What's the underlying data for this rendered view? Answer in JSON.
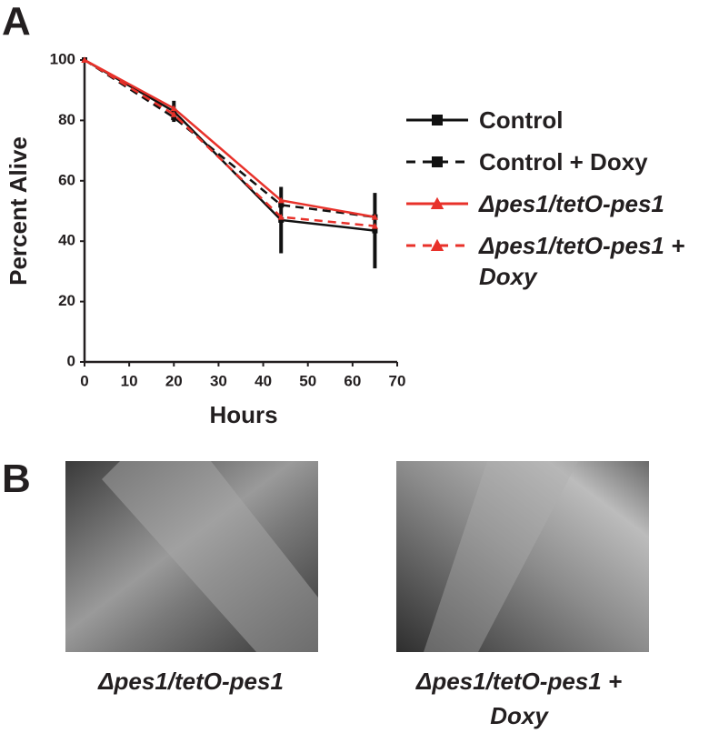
{
  "panel_labels": [
    "A",
    "B"
  ],
  "chart_data": {
    "type": "line",
    "x_label": "Hours",
    "y_label": "Percent Alive",
    "x": [
      0,
      20,
      44,
      65
    ],
    "series": [
      {
        "name": "Control",
        "color": "#111111",
        "dash": false,
        "marker": "square",
        "italic": false,
        "values": [
          100,
          83,
          47,
          43.5
        ],
        "errors": [
          0,
          3.5,
          11,
          12.5
        ]
      },
      {
        "name": "Control + Doxy",
        "color": "#111111",
        "dash": true,
        "marker": "square",
        "italic": false,
        "values": [
          100,
          81,
          52,
          48
        ]
      },
      {
        "name": "Δpes1/tetO-pes1",
        "color": "#e8312a",
        "dash": false,
        "marker": "triangle",
        "italic": true,
        "values": [
          100,
          84,
          53.5,
          48
        ]
      },
      {
        "name": "Δpes1/tetO-pes1 + Doxy",
        "color": "#e8312a",
        "dash": true,
        "marker": "triangle",
        "italic": true,
        "values": [
          100,
          82,
          48,
          45
        ]
      }
    ],
    "xlim": [
      0,
      70
    ],
    "xticks": [
      0,
      10,
      20,
      30,
      40,
      50,
      60,
      70
    ],
    "ylim": [
      0,
      100
    ],
    "yticks": [
      0,
      20,
      40,
      60,
      80,
      100
    ]
  },
  "images": [
    {
      "caption": "Δpes1/tetO-pes1"
    },
    {
      "caption": "Δpes1/tetO-pes1 + Doxy"
    }
  ]
}
